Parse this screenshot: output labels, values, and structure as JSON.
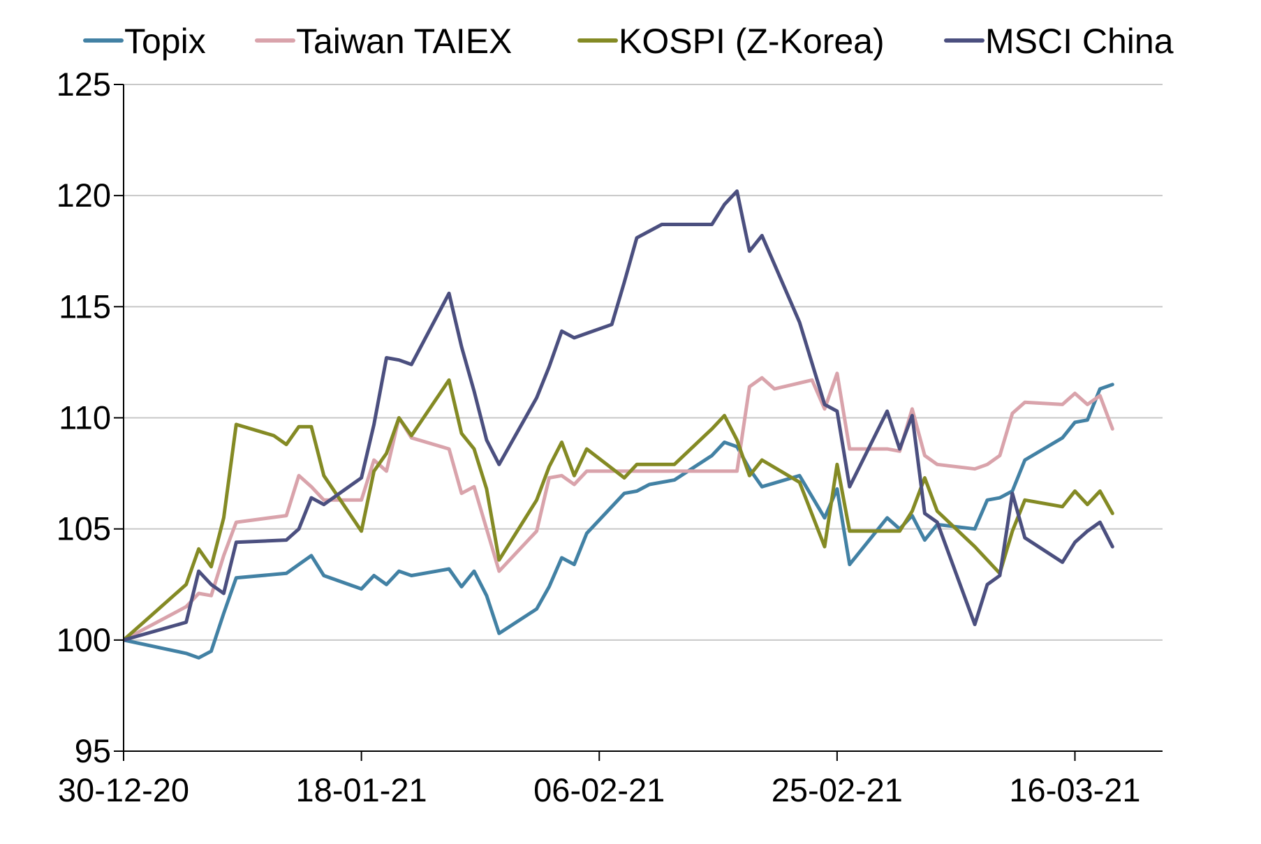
{
  "chart_data": {
    "type": "line",
    "title": "",
    "xlabel": "",
    "ylabel": "",
    "ylim": [
      95,
      125
    ],
    "yticks": [
      "95",
      "100",
      "105",
      "110",
      "115",
      "120",
      "125"
    ],
    "xlim": [
      "2020-12-30",
      "2021-03-23"
    ],
    "xticks": [
      {
        "date": "2020-12-30",
        "label": "30-12-20"
      },
      {
        "date": "2021-01-18",
        "label": "18-01-21"
      },
      {
        "date": "2021-02-06",
        "label": "06-02-21"
      },
      {
        "date": "2021-02-25",
        "label": "25-02-21"
      },
      {
        "date": "2021-03-16",
        "label": "16-03-21"
      }
    ],
    "grid": "horizontal",
    "legend_position": "top",
    "series": [
      {
        "name": "Topix",
        "color": "#4281a4",
        "points": [
          [
            "2020-12-30",
            100.0
          ],
          [
            "2021-01-04",
            99.4
          ],
          [
            "2021-01-05",
            99.2
          ],
          [
            "2021-01-06",
            99.5
          ],
          [
            "2021-01-07",
            101.2
          ],
          [
            "2021-01-08",
            102.8
          ],
          [
            "2021-01-12",
            103.0
          ],
          [
            "2021-01-13",
            103.4
          ],
          [
            "2021-01-14",
            103.8
          ],
          [
            "2021-01-15",
            102.9
          ],
          [
            "2021-01-18",
            102.3
          ],
          [
            "2021-01-19",
            102.9
          ],
          [
            "2021-01-20",
            102.5
          ],
          [
            "2021-01-21",
            103.1
          ],
          [
            "2021-01-22",
            102.9
          ],
          [
            "2021-01-25",
            103.2
          ],
          [
            "2021-01-26",
            102.4
          ],
          [
            "2021-01-27",
            103.1
          ],
          [
            "2021-01-28",
            102.0
          ],
          [
            "2021-01-29",
            100.3
          ],
          [
            "2021-02-01",
            101.4
          ],
          [
            "2021-02-02",
            102.4
          ],
          [
            "2021-02-03",
            103.7
          ],
          [
            "2021-02-04",
            103.4
          ],
          [
            "2021-02-05",
            104.8
          ],
          [
            "2021-02-08",
            106.6
          ],
          [
            "2021-02-09",
            106.7
          ],
          [
            "2021-02-10",
            107.0
          ],
          [
            "2021-02-12",
            107.2
          ],
          [
            "2021-02-15",
            108.3
          ],
          [
            "2021-02-16",
            108.9
          ],
          [
            "2021-02-17",
            108.7
          ],
          [
            "2021-02-18",
            107.7
          ],
          [
            "2021-02-19",
            106.9
          ],
          [
            "2021-02-22",
            107.4
          ],
          [
            "2021-02-24",
            105.5
          ],
          [
            "2021-02-25",
            106.8
          ],
          [
            "2021-02-26",
            103.4
          ],
          [
            "2021-03-01",
            105.5
          ],
          [
            "2021-03-02",
            105.0
          ],
          [
            "2021-03-03",
            105.6
          ],
          [
            "2021-03-04",
            104.5
          ],
          [
            "2021-03-05",
            105.2
          ],
          [
            "2021-03-08",
            105.0
          ],
          [
            "2021-03-09",
            106.3
          ],
          [
            "2021-03-10",
            106.4
          ],
          [
            "2021-03-11",
            106.7
          ],
          [
            "2021-03-12",
            108.1
          ],
          [
            "2021-03-15",
            109.1
          ],
          [
            "2021-03-16",
            109.8
          ],
          [
            "2021-03-17",
            109.9
          ],
          [
            "2021-03-18",
            111.3
          ],
          [
            "2021-03-19",
            111.5
          ]
        ]
      },
      {
        "name": "Taiwan TAIEX",
        "color": "#d9a3ab",
        "points": [
          [
            "2020-12-30",
            100.0
          ],
          [
            "2021-01-04",
            101.5
          ],
          [
            "2021-01-05",
            102.1
          ],
          [
            "2021-01-06",
            102.0
          ],
          [
            "2021-01-07",
            103.8
          ],
          [
            "2021-01-08",
            105.3
          ],
          [
            "2021-01-12",
            105.6
          ],
          [
            "2021-01-13",
            107.4
          ],
          [
            "2021-01-14",
            106.9
          ],
          [
            "2021-01-15",
            106.3
          ],
          [
            "2021-01-18",
            106.3
          ],
          [
            "2021-01-19",
            108.1
          ],
          [
            "2021-01-20",
            107.6
          ],
          [
            "2021-01-21",
            110.0
          ],
          [
            "2021-01-22",
            109.1
          ],
          [
            "2021-01-25",
            108.6
          ],
          [
            "2021-01-26",
            106.6
          ],
          [
            "2021-01-27",
            106.9
          ],
          [
            "2021-01-28",
            105.0
          ],
          [
            "2021-01-29",
            103.1
          ],
          [
            "2021-02-01",
            104.9
          ],
          [
            "2021-02-02",
            107.3
          ],
          [
            "2021-02-03",
            107.4
          ],
          [
            "2021-02-04",
            107.0
          ],
          [
            "2021-02-05",
            107.6
          ],
          [
            "2021-02-08",
            107.6
          ],
          [
            "2021-02-09",
            107.6
          ],
          [
            "2021-02-10",
            107.6
          ],
          [
            "2021-02-17",
            107.6
          ],
          [
            "2021-02-18",
            111.4
          ],
          [
            "2021-02-19",
            111.8
          ],
          [
            "2021-02-20",
            111.3
          ],
          [
            "2021-02-23",
            111.7
          ],
          [
            "2021-02-24",
            110.4
          ],
          [
            "2021-02-25",
            112.0
          ],
          [
            "2021-02-26",
            108.6
          ],
          [
            "2021-03-01",
            108.6
          ],
          [
            "2021-03-02",
            108.5
          ],
          [
            "2021-03-03",
            110.4
          ],
          [
            "2021-03-04",
            108.3
          ],
          [
            "2021-03-05",
            107.9
          ],
          [
            "2021-03-08",
            107.7
          ],
          [
            "2021-03-09",
            107.9
          ],
          [
            "2021-03-10",
            108.3
          ],
          [
            "2021-03-11",
            110.2
          ],
          [
            "2021-03-12",
            110.7
          ],
          [
            "2021-03-15",
            110.6
          ],
          [
            "2021-03-16",
            111.1
          ],
          [
            "2021-03-17",
            110.6
          ],
          [
            "2021-03-18",
            111.0
          ],
          [
            "2021-03-19",
            109.5
          ]
        ]
      },
      {
        "name": "KOSPI (Z-Korea)",
        "color": "#848a24",
        "points": [
          [
            "2020-12-30",
            100.0
          ],
          [
            "2021-01-04",
            102.5
          ],
          [
            "2021-01-05",
            104.1
          ],
          [
            "2021-01-06",
            103.3
          ],
          [
            "2021-01-07",
            105.5
          ],
          [
            "2021-01-08",
            109.7
          ],
          [
            "2021-01-11",
            109.2
          ],
          [
            "2021-01-12",
            108.8
          ],
          [
            "2021-01-13",
            109.6
          ],
          [
            "2021-01-14",
            109.6
          ],
          [
            "2021-01-15",
            107.4
          ],
          [
            "2021-01-18",
            104.9
          ],
          [
            "2021-01-19",
            107.6
          ],
          [
            "2021-01-20",
            108.4
          ],
          [
            "2021-01-21",
            110.0
          ],
          [
            "2021-01-22",
            109.2
          ],
          [
            "2021-01-25",
            111.7
          ],
          [
            "2021-01-26",
            109.3
          ],
          [
            "2021-01-27",
            108.6
          ],
          [
            "2021-01-28",
            106.8
          ],
          [
            "2021-01-29",
            103.6
          ],
          [
            "2021-02-01",
            106.3
          ],
          [
            "2021-02-02",
            107.8
          ],
          [
            "2021-02-03",
            108.9
          ],
          [
            "2021-02-04",
            107.4
          ],
          [
            "2021-02-05",
            108.6
          ],
          [
            "2021-02-08",
            107.3
          ],
          [
            "2021-02-09",
            107.9
          ],
          [
            "2021-02-10",
            107.9
          ],
          [
            "2021-02-12",
            107.9
          ],
          [
            "2021-02-15",
            109.5
          ],
          [
            "2021-02-16",
            110.1
          ],
          [
            "2021-02-17",
            109.0
          ],
          [
            "2021-02-18",
            107.4
          ],
          [
            "2021-02-19",
            108.1
          ],
          [
            "2021-02-22",
            107.1
          ],
          [
            "2021-02-24",
            104.2
          ],
          [
            "2021-02-25",
            107.9
          ],
          [
            "2021-02-26",
            104.9
          ],
          [
            "2021-03-01",
            104.9
          ],
          [
            "2021-03-02",
            104.9
          ],
          [
            "2021-03-03",
            105.8
          ],
          [
            "2021-03-04",
            107.3
          ],
          [
            "2021-03-05",
            105.8
          ],
          [
            "2021-03-08",
            104.2
          ],
          [
            "2021-03-10",
            103.0
          ],
          [
            "2021-03-11",
            104.9
          ],
          [
            "2021-03-12",
            106.3
          ],
          [
            "2021-03-15",
            106.0
          ],
          [
            "2021-03-16",
            106.7
          ],
          [
            "2021-03-17",
            106.1
          ],
          [
            "2021-03-18",
            106.7
          ],
          [
            "2021-03-19",
            105.7
          ]
        ]
      },
      {
        "name": "MSCI China",
        "color": "#4b4f7f",
        "points": [
          [
            "2020-12-30",
            100.0
          ],
          [
            "2021-01-04",
            100.8
          ],
          [
            "2021-01-05",
            103.1
          ],
          [
            "2021-01-06",
            102.5
          ],
          [
            "2021-01-07",
            102.1
          ],
          [
            "2021-01-08",
            104.4
          ],
          [
            "2021-01-12",
            104.5
          ],
          [
            "2021-01-13",
            105.0
          ],
          [
            "2021-01-14",
            106.4
          ],
          [
            "2021-01-15",
            106.1
          ],
          [
            "2021-01-18",
            107.3
          ],
          [
            "2021-01-19",
            109.7
          ],
          [
            "2021-01-20",
            112.7
          ],
          [
            "2021-01-21",
            112.6
          ],
          [
            "2021-01-22",
            112.4
          ],
          [
            "2021-01-25",
            115.6
          ],
          [
            "2021-01-26",
            113.2
          ],
          [
            "2021-01-27",
            111.2
          ],
          [
            "2021-01-28",
            109.0
          ],
          [
            "2021-01-29",
            107.9
          ],
          [
            "2021-02-01",
            110.9
          ],
          [
            "2021-02-02",
            112.3
          ],
          [
            "2021-02-03",
            113.9
          ],
          [
            "2021-02-04",
            113.6
          ],
          [
            "2021-02-05",
            113.8
          ],
          [
            "2021-02-07",
            114.2
          ],
          [
            "2021-02-08",
            116.1
          ],
          [
            "2021-02-09",
            118.1
          ],
          [
            "2021-02-11",
            118.7
          ],
          [
            "2021-02-15",
            118.7
          ],
          [
            "2021-02-16",
            119.6
          ],
          [
            "2021-02-17",
            120.2
          ],
          [
            "2021-02-18",
            117.5
          ],
          [
            "2021-02-19",
            118.2
          ],
          [
            "2021-02-22",
            114.3
          ],
          [
            "2021-02-24",
            110.6
          ],
          [
            "2021-02-25",
            110.3
          ],
          [
            "2021-02-26",
            106.9
          ],
          [
            "2021-03-01",
            110.3
          ],
          [
            "2021-03-02",
            108.6
          ],
          [
            "2021-03-03",
            110.1
          ],
          [
            "2021-03-04",
            105.7
          ],
          [
            "2021-03-05",
            105.3
          ],
          [
            "2021-03-08",
            100.7
          ],
          [
            "2021-03-09",
            102.5
          ],
          [
            "2021-03-10",
            102.9
          ],
          [
            "2021-03-11",
            106.6
          ],
          [
            "2021-03-12",
            104.6
          ],
          [
            "2021-03-15",
            103.5
          ],
          [
            "2021-03-16",
            104.4
          ],
          [
            "2021-03-17",
            104.9
          ],
          [
            "2021-03-18",
            105.3
          ],
          [
            "2021-03-19",
            104.2
          ]
        ]
      }
    ]
  }
}
